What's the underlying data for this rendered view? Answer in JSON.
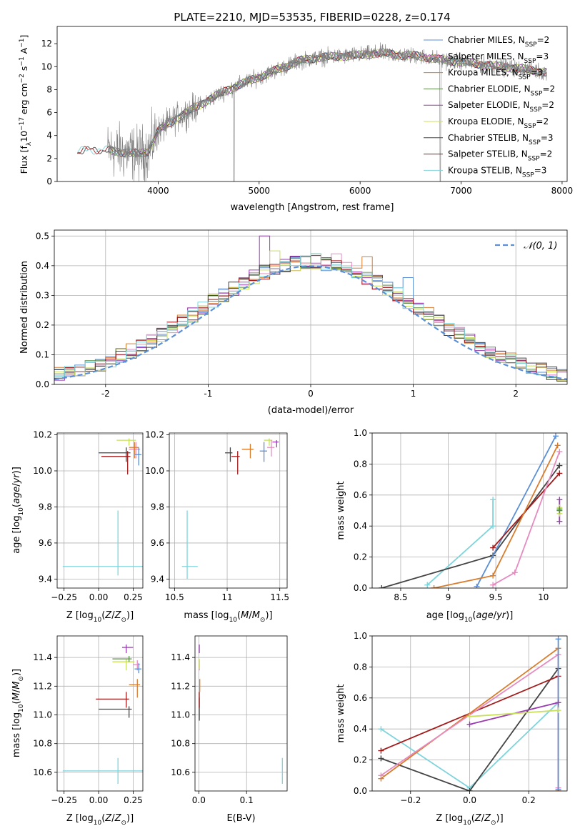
{
  "figure_title": "PLATE=2210, MJD=53535, FIBERID=0228, z=0.174",
  "model_colors": {
    "Chabrier MILES": "#5b8fd6",
    "Salpeter MILES": "#e68bbf",
    "Kroupa MILES": "#d97c2b",
    "Chabrier ELODIE": "#5a8a4a",
    "Salpeter ELODIE": "#9a3cb0",
    "Kroupa ELODIE": "#c8e05a",
    "Chabrier STELIB": "#444444",
    "Salpeter STELIB": "#a31a1a",
    "Kroupa STELIB": "#7fd4dc",
    "data": "#808080"
  },
  "chart_data": [
    {
      "type": "line",
      "id": "spectrum",
      "title": "",
      "xlabel": "wavelength [Angstrom, rest frame]",
      "ylabel": "Flux [f_λ10^-17 erg cm^-2 s^-1 A^-1]",
      "xlim": [
        3000,
        8050
      ],
      "ylim": [
        0,
        13.5
      ],
      "xticks": [
        4000,
        5000,
        6000,
        7000,
        8000
      ],
      "yticks": [
        0,
        2,
        4,
        6,
        8,
        10,
        12
      ],
      "legend_position": "right",
      "legend": [
        {
          "label": "Chabrier MILES, N_SSP=2",
          "text": "Chabrier MILES, N",
          "sub": "SSP",
          "tail": "=2"
        },
        {
          "label": "Salpeter MILES, N_SSP=3",
          "text": "Salpeter MILES, N",
          "sub": "SSP",
          "tail": "=3"
        },
        {
          "label": "Kroupa MILES, N_SSP=3",
          "text": "Kroupa MILES, N",
          "sub": "SSP",
          "tail": "=3"
        },
        {
          "label": "Chabrier ELODIE, N_SSP=2",
          "text": "Chabrier ELODIE, N",
          "sub": "SSP",
          "tail": "=2"
        },
        {
          "label": "Salpeter ELODIE, N_SSP=2",
          "text": "Salpeter ELODIE, N",
          "sub": "SSP",
          "tail": "=2"
        },
        {
          "label": "Kroupa ELODIE, N_SSP=2",
          "text": "Kroupa ELODIE, N",
          "sub": "SSP",
          "tail": "=2"
        },
        {
          "label": "Chabrier STELIB, N_SSP=3",
          "text": "Chabrier STELIB, N",
          "sub": "SSP",
          "tail": "=3"
        },
        {
          "label": "Salpeter STELIB, N_SSP=2",
          "text": "Salpeter STELIB, N",
          "sub": "SSP",
          "tail": "=2"
        },
        {
          "label": "Kroupa STELIB, N_SSP=3",
          "text": "Kroupa STELIB, N",
          "sub": "SSP",
          "tail": "=3"
        }
      ],
      "data_wavelength_range": [
        3500,
        7850
      ],
      "continuum_anchors": [
        [
          3200,
          2.6
        ],
        [
          3400,
          2.8
        ],
        [
          3600,
          2.6
        ],
        [
          3800,
          2.4
        ],
        [
          3900,
          2.6
        ],
        [
          4000,
          4.4
        ],
        [
          4200,
          5.6
        ],
        [
          4400,
          6.6
        ],
        [
          4600,
          7.6
        ],
        [
          4800,
          8.4
        ],
        [
          5000,
          9.1
        ],
        [
          5200,
          9.8
        ],
        [
          5400,
          10.5
        ],
        [
          5600,
          10.8
        ],
        [
          5800,
          10.9
        ],
        [
          6000,
          11.0
        ],
        [
          6200,
          11.2
        ],
        [
          6400,
          11.0
        ],
        [
          6600,
          10.9
        ],
        [
          6800,
          10.6
        ],
        [
          7000,
          10.4
        ],
        [
          7200,
          10.2
        ],
        [
          7400,
          10.0
        ],
        [
          7600,
          9.8
        ],
        [
          7850,
          9.5
        ]
      ]
    },
    {
      "type": "line",
      "id": "residual-histogram",
      "xlabel": "(data-model)/error",
      "ylabel": "Normed distribution",
      "xlim": [
        -2.5,
        2.5
      ],
      "ylim": [
        0,
        0.52
      ],
      "xticks": [
        -2,
        -1,
        0,
        1,
        2
      ],
      "yticks": [
        0.0,
        0.1,
        0.2,
        0.3,
        0.4,
        0.5
      ],
      "grid": true,
      "legend_position": "top-right",
      "legend": [
        {
          "label": "N(0,1)",
          "text": "𝒩(0, 1)"
        }
      ],
      "gaussian": {
        "mean": 0,
        "sigma": 1
      },
      "bin_width": 0.1,
      "series_peak_bins": [
        {
          "name": "Chabrier MILES",
          "peak_x": 1.0,
          "peak_y": 0.36
        },
        {
          "name": "Salpeter MILES",
          "peak_x": 0.3,
          "peak_y": 0.44
        },
        {
          "name": "Kroupa MILES",
          "peak_x": 0.6,
          "peak_y": 0.43
        },
        {
          "name": "Chabrier ELODIE",
          "peak_x": 0.1,
          "peak_y": 0.44
        },
        {
          "name": "Salpeter ELODIE",
          "peak_x": -0.4,
          "peak_y": 0.5
        },
        {
          "name": "Kroupa ELODIE",
          "peak_x": -0.3,
          "peak_y": 0.45
        },
        {
          "name": "Chabrier STELIB",
          "peak_x": -0.1,
          "peak_y": 0.43
        },
        {
          "name": "Salpeter STELIB",
          "peak_x": 0.0,
          "peak_y": 0.43
        },
        {
          "name": "Kroupa STELIB",
          "peak_x": 0.1,
          "peak_y": 0.44
        }
      ]
    },
    {
      "type": "scatter",
      "id": "age-vs-metallicity",
      "xlabel": "Z [log10(Z/Z⊙)]",
      "ylabel": "age [log10(age/yr)]",
      "xlim": [
        -0.3,
        0.32
      ],
      "ylim": [
        9.35,
        10.21
      ],
      "xticks": [
        -0.25,
        0.0,
        0.25
      ],
      "xticklabels": [
        "−0.25",
        "0.00",
        "0.25"
      ],
      "yticks": [
        9.4,
        9.6,
        9.8,
        10.0,
        10.2
      ],
      "grid": true,
      "points": [
        {
          "name": "Kroupa STELIB",
          "x": 0.14,
          "y": 9.47,
          "xerr": [
            0.4,
            0.18
          ],
          "yerr": [
            0.05,
            0.31
          ]
        },
        {
          "name": "Chabrier STELIB",
          "x": 0.2,
          "y": 10.1,
          "xerr": [
            0.2,
            0.03
          ],
          "yerr": [
            0.05,
            0.03
          ]
        },
        {
          "name": "Salpeter STELIB",
          "x": 0.21,
          "y": 10.08,
          "xerr": [
            0.19,
            0.02
          ],
          "yerr": [
            0.1,
            0.03
          ]
        },
        {
          "name": "Kroupa ELODIE",
          "x": 0.22,
          "y": 10.17,
          "xerr": [
            0.09,
            0.05
          ],
          "yerr": [
            0.03,
            0.01
          ]
        },
        {
          "name": "Salpeter MILES",
          "x": 0.27,
          "y": 10.12,
          "xerr": [
            0.05,
            0.03
          ],
          "yerr": [
            0.05,
            0.04
          ]
        },
        {
          "name": "Kroupa MILES",
          "x": 0.26,
          "y": 10.13,
          "xerr": [
            0.04,
            0.03
          ],
          "yerr": [
            0.06,
            0.03
          ]
        },
        {
          "name": "Chabrier MILES",
          "x": 0.29,
          "y": 10.09,
          "xerr": [
            0.03,
            0.02
          ],
          "yerr": [
            0.06,
            0.04
          ]
        }
      ]
    },
    {
      "type": "scatter",
      "id": "age-vs-mass",
      "xlabel": "mass [log10(M/M⊙)]",
      "ylabel": "",
      "xlim": [
        10.45,
        11.57
      ],
      "ylim": [
        9.35,
        10.21
      ],
      "xticks": [
        10.5,
        11.0,
        11.5
      ],
      "yticks": [
        9.4,
        9.6,
        9.8,
        10.0,
        10.2
      ],
      "grid": true,
      "points": [
        {
          "name": "Kroupa STELIB",
          "x": 10.62,
          "y": 9.47,
          "xerr": [
            0.05,
            0.1
          ],
          "yerr": [
            0.07,
            0.31
          ]
        },
        {
          "name": "Chabrier STELIB",
          "x": 11.03,
          "y": 10.1,
          "xerr": [
            0.05,
            0.02
          ],
          "yerr": [
            0.05,
            0.03
          ]
        },
        {
          "name": "Salpeter STELIB",
          "x": 11.1,
          "y": 10.08,
          "xerr": [
            0.06,
            0.02
          ],
          "yerr": [
            0.1,
            0.03
          ]
        },
        {
          "name": "Kroupa MILES",
          "x": 11.22,
          "y": 10.12,
          "xerr": [
            0.08,
            0.03
          ],
          "yerr": [
            0.05,
            0.03
          ]
        },
        {
          "name": "Chabrier MILES",
          "x": 11.35,
          "y": 10.11,
          "xerr": [
            0.04,
            0.03
          ],
          "yerr": [
            0.06,
            0.05
          ]
        },
        {
          "name": "Kroupa ELODIE",
          "x": 11.4,
          "y": 10.17,
          "xerr": [
            0.05,
            0.03
          ],
          "yerr": [
            0.03,
            0.01
          ]
        },
        {
          "name": "Salpeter MILES",
          "x": 11.42,
          "y": 10.13,
          "xerr": [
            0.04,
            0.03
          ],
          "yerr": [
            0.05,
            0.04
          ]
        },
        {
          "name": "Salpeter ELODIE",
          "x": 11.47,
          "y": 10.16,
          "xerr": [
            0.04,
            0.02
          ],
          "yerr": [
            0.03,
            0.01
          ]
        }
      ]
    },
    {
      "type": "line",
      "id": "mass-weight-vs-age",
      "xlabel": "age [log10(age/yr)]",
      "ylabel": "mass weight",
      "xlim": [
        8.2,
        10.25
      ],
      "ylim": [
        0,
        1.0
      ],
      "xticks": [
        8.5,
        9.0,
        9.5,
        10.0
      ],
      "yticks": [
        0.0,
        0.2,
        0.4,
        0.6,
        0.8,
        1.0
      ],
      "grid": true,
      "series": [
        {
          "name": "Kroupa STELIB",
          "x": [
            8.78,
            9.47,
            9.47
          ],
          "y": [
            0.02,
            0.4,
            0.57
          ]
        },
        {
          "name": "Chabrier STELIB",
          "x": [
            8.3,
            9.47,
            10.17
          ],
          "y": [
            0.0,
            0.21,
            0.79
          ]
        },
        {
          "name": "Chabrier MILES",
          "x": [
            9.3,
            10.13
          ],
          "y": [
            0.01,
            0.98
          ]
        },
        {
          "name": "Salpeter STELIB",
          "x": [
            9.47,
            10.17
          ],
          "y": [
            0.26,
            0.74
          ]
        },
        {
          "name": "Kroupa MILES",
          "x": [
            8.85,
            9.47,
            10.15
          ],
          "y": [
            0.0,
            0.08,
            0.92
          ]
        },
        {
          "name": "Salpeter MILES",
          "x": [
            9.47,
            9.7,
            10.17
          ],
          "y": [
            0.02,
            0.1,
            0.88
          ]
        },
        {
          "name": "Salpeter ELODIE",
          "x": [
            10.17,
            10.17
          ],
          "y": [
            0.43,
            0.57
          ]
        },
        {
          "name": "Kroupa ELODIE",
          "x": [
            10.17,
            10.17
          ],
          "y": [
            0.48,
            0.52
          ]
        },
        {
          "name": "Chabrier ELODIE",
          "x": [
            10.17,
            10.17
          ],
          "y": [
            0.5,
            0.51
          ]
        }
      ]
    },
    {
      "type": "scatter",
      "id": "mass-vs-metallicity",
      "xlabel": "Z [log10(Z/Z⊙)]",
      "ylabel": "mass [log10(M/M⊙)]",
      "xlim": [
        -0.3,
        0.32
      ],
      "ylim": [
        10.47,
        11.55
      ],
      "xticks": [
        -0.25,
        0.0,
        0.25
      ],
      "xticklabels": [
        "−0.25",
        "0.00",
        "0.25"
      ],
      "yticks": [
        10.6,
        10.8,
        11.0,
        11.2,
        11.4
      ],
      "grid": true,
      "points": [
        {
          "name": "Kroupa STELIB",
          "x": 0.14,
          "y": 10.61,
          "xerr": [
            0.4,
            0.18
          ],
          "yerr": [
            0.09,
            0.09
          ]
        },
        {
          "name": "Chabrier STELIB",
          "x": 0.22,
          "y": 11.04,
          "xerr": [
            0.22,
            0.02
          ],
          "yerr": [
            0.06,
            0.02
          ]
        },
        {
          "name": "Salpeter STELIB",
          "x": 0.2,
          "y": 11.11,
          "xerr": [
            0.22,
            0.02
          ],
          "yerr": [
            0.06,
            0.05
          ]
        },
        {
          "name": "Kroupa MILES",
          "x": 0.28,
          "y": 11.21,
          "xerr": [
            0.06,
            0.02
          ],
          "yerr": [
            0.09,
            0.04
          ]
        },
        {
          "name": "Kroupa ELODIE",
          "x": 0.2,
          "y": 11.37,
          "xerr": [
            0.1,
            0.06
          ],
          "yerr": [
            0.06,
            0.02
          ]
        },
        {
          "name": "Salpeter MILES",
          "x": 0.28,
          "y": 11.35,
          "xerr": [
            0.03,
            0.02
          ],
          "yerr": [
            0.04,
            0.03
          ]
        },
        {
          "name": "Chabrier MILES",
          "x": 0.29,
          "y": 11.32,
          "xerr": [
            0.03,
            0.02
          ],
          "yerr": [
            0.03,
            0.04
          ]
        },
        {
          "name": "Salpeter ELODIE",
          "x": 0.2,
          "y": 11.47,
          "xerr": [
            0.03,
            0.05
          ],
          "yerr": [
            0.04,
            0.02
          ]
        },
        {
          "name": "Chabrier ELODIE",
          "x": 0.22,
          "y": 11.39,
          "xerr": [
            0.12,
            0.02
          ],
          "yerr": [
            0.02,
            0.02
          ]
        }
      ]
    },
    {
      "type": "scatter",
      "id": "mass-vs-ebv",
      "xlabel": "E(B-V)",
      "ylabel": "",
      "xlim": [
        -0.008,
        0.185
      ],
      "ylim": [
        10.47,
        11.55
      ],
      "xticks": [
        0.0,
        0.1
      ],
      "xticklabels": [
        "0.0",
        "0.1"
      ],
      "yticks": [
        10.6,
        10.8,
        11.0,
        11.2,
        11.4
      ],
      "grid": true,
      "points": [
        {
          "name": "Kroupa STELIB",
          "x": 0.175,
          "y": 10.61,
          "xerr": [
            0.0,
            0.0
          ],
          "yerr": [
            0.09,
            0.09
          ]
        },
        {
          "name": "Chabrier STELIB",
          "x": 0.001,
          "y": 11.04,
          "xerr": [
            0.0,
            0.0
          ],
          "yerr": [
            0.08,
            0.08
          ]
        },
        {
          "name": "Salpeter STELIB",
          "x": 0.001,
          "y": 11.11,
          "xerr": [
            0.0,
            0.0
          ],
          "yerr": [
            0.06,
            0.05
          ]
        },
        {
          "name": "Kroupa MILES",
          "x": 0.002,
          "y": 11.21,
          "xerr": [
            0.0,
            0.0
          ],
          "yerr": [
            0.05,
            0.04
          ]
        },
        {
          "name": "Salpeter MILES",
          "x": 0.001,
          "y": 11.35,
          "xerr": [
            0.0,
            0.0
          ],
          "yerr": [
            0.04,
            0.03
          ]
        },
        {
          "name": "Kroupa ELODIE",
          "x": 0.001,
          "y": 11.37,
          "xerr": [
            0.0,
            0.0
          ],
          "yerr": [
            0.05,
            0.02
          ]
        },
        {
          "name": "Salpeter ELODIE",
          "x": 0.001,
          "y": 11.47,
          "xerr": [
            0.0,
            0.0
          ],
          "yerr": [
            0.04,
            0.02
          ]
        }
      ]
    },
    {
      "type": "line",
      "id": "mass-weight-vs-metallicity",
      "xlabel": "Z [log10(Z/Z⊙)]",
      "ylabel": "mass weight",
      "xlim": [
        -0.33,
        0.33
      ],
      "ylim": [
        0,
        1.0
      ],
      "xticks": [
        -0.2,
        0.0,
        0.2
      ],
      "xticklabels": [
        "−0.2",
        "0.0",
        "0.2"
      ],
      "yticks": [
        0.0,
        0.2,
        0.4,
        0.6,
        0.8,
        1.0
      ],
      "grid": true,
      "series": [
        {
          "name": "Kroupa STELIB",
          "x": [
            -0.3,
            0.0,
            0.3
          ],
          "y": [
            0.4,
            0.02,
            0.57
          ]
        },
        {
          "name": "Chabrier STELIB",
          "x": [
            -0.3,
            0.0,
            0.3
          ],
          "y": [
            0.21,
            0.0,
            0.79
          ]
        },
        {
          "name": "Salpeter STELIB",
          "x": [
            -0.3,
            0.3
          ],
          "y": [
            0.26,
            0.74
          ]
        },
        {
          "name": "Kroupa MILES",
          "x": [
            -0.3,
            0.3,
            0.3
          ],
          "y": [
            0.08,
            0.92,
            0.0
          ]
        },
        {
          "name": "Salpeter MILES",
          "x": [
            -0.3,
            0.3,
            0.3
          ],
          "y": [
            0.1,
            0.88,
            0.02
          ]
        },
        {
          "name": "Chabrier MILES",
          "x": [
            0.3,
            0.3
          ],
          "y": [
            0.01,
            0.98
          ]
        },
        {
          "name": "Salpeter ELODIE",
          "x": [
            0.0,
            0.3
          ],
          "y": [
            0.43,
            0.57
          ]
        },
        {
          "name": "Kroupa ELODIE",
          "x": [
            0.0,
            0.3
          ],
          "y": [
            0.48,
            0.52
          ]
        }
      ]
    }
  ]
}
